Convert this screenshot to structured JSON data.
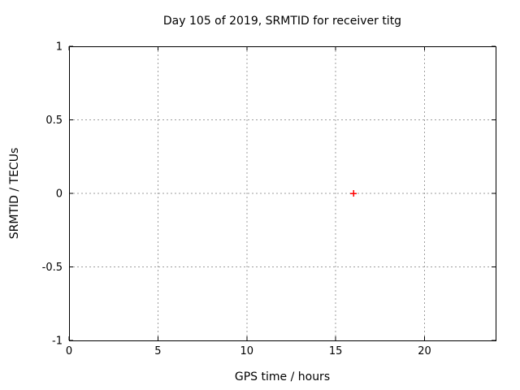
{
  "chart_data": {
    "type": "scatter",
    "title": "Day 105 of 2019, SRMTID for receiver titg",
    "xlabel": "GPS time / hours",
    "ylabel": "SRMTID / TECUs",
    "xlim": [
      0,
      24
    ],
    "ylim": [
      -1,
      1
    ],
    "x_ticks": [
      0,
      5,
      10,
      15,
      20
    ],
    "y_ticks": [
      -1,
      -0.5,
      0,
      0.5,
      1
    ],
    "grid": "dashed",
    "tick_style": "inward-mirrored",
    "legend_position": "none",
    "series": [
      {
        "name": "SRMTID",
        "marker": "plus",
        "color": "#ff0000",
        "points": [
          [
            16,
            0
          ]
        ]
      }
    ]
  },
  "colors": {
    "background": "#ffffff",
    "axis": "#000000",
    "grid": "#9e9e9e",
    "text": "#000000",
    "marker": "#ff0000"
  }
}
